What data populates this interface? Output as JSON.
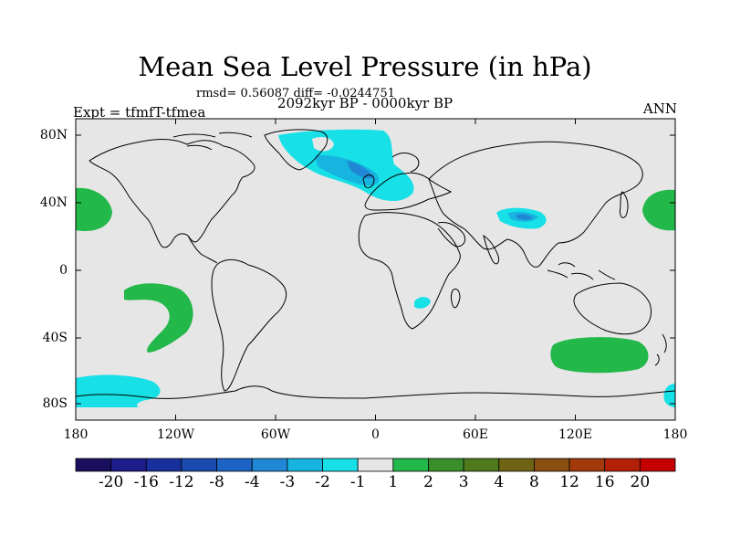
{
  "title": "Mean Sea Level Pressure (in hPa)",
  "stats": "rmsd= 0.56087  diff= -0.0244751",
  "experiment": "Expt = tfmfT-tfmea",
  "period": "2092kyr BP - 0000kyr BP",
  "season": "ANN",
  "lat_labels": [
    "80N",
    "40N",
    "0",
    "40S",
    "80S"
  ],
  "lon_labels": [
    "180",
    "120W",
    "60W",
    "0",
    "60E",
    "120E",
    "180"
  ],
  "colorbar": {
    "labels": [
      "-20",
      "-16",
      "-12",
      "-8",
      "-4",
      "-3",
      "-2",
      "-1",
      "1",
      "2",
      "3",
      "4",
      "8",
      "12",
      "16",
      "20"
    ],
    "colors": [
      "#1a0f5e",
      "#1c1c8a",
      "#18309c",
      "#1a4bb0",
      "#1d63c4",
      "#1f87d4",
      "#17b4e0",
      "#17e0e6",
      "#e6e6e6",
      "#22b84a",
      "#3a8f2a",
      "#4f7a1c",
      "#6e6414",
      "#8a4e10",
      "#a33a0c",
      "#b32008",
      "#c40000"
    ]
  },
  "colors": {
    "background": "#e6e6e6",
    "positive_1_2": "#22b84a",
    "negative_1_2": "#17e0e6",
    "negative_2_3": "#17b4e0",
    "negative_3_4": "#1f87d4",
    "coast": "#000000"
  }
}
